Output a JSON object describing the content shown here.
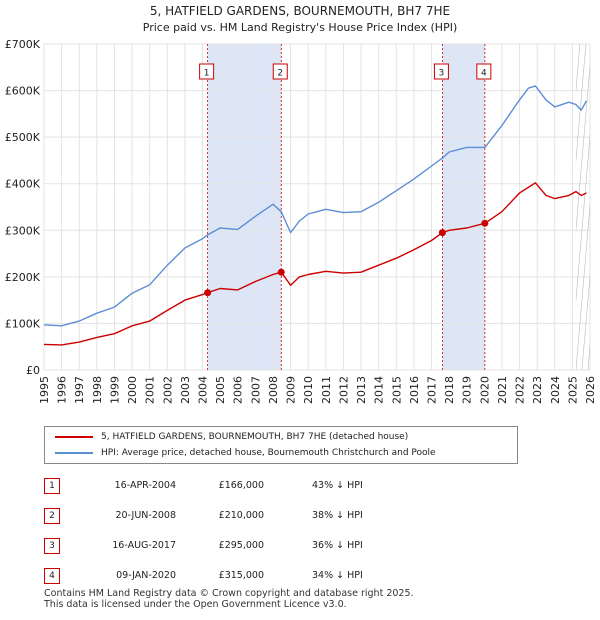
{
  "chart_data": {
    "type": "line",
    "title": "5, HATFIELD GARDENS, BOURNEMOUTH, BH7 7HE",
    "subtitle": "Price paid vs. HM Land Registry's House Price Index (HPI)",
    "xlim": [
      1995,
      2026
    ],
    "ylim": [
      0,
      700000
    ],
    "x_ticks": [
      "1995",
      "1996",
      "1997",
      "1998",
      "1999",
      "2000",
      "2001",
      "2002",
      "2003",
      "2004",
      "2005",
      "2006",
      "2007",
      "2008",
      "2009",
      "2010",
      "2011",
      "2012",
      "2013",
      "2014",
      "2015",
      "2016",
      "2017",
      "2018",
      "2019",
      "2020",
      "2021",
      "2022",
      "2023",
      "2024",
      "2025",
      "2026"
    ],
    "y_ticks": [
      {
        "value": 0,
        "label": "£0"
      },
      {
        "value": 100000,
        "label": "£100K"
      },
      {
        "value": 200000,
        "label": "£200K"
      },
      {
        "value": 300000,
        "label": "£300K"
      },
      {
        "value": 400000,
        "label": "£400K"
      },
      {
        "value": 500000,
        "label": "£500K"
      },
      {
        "value": 600000,
        "label": "£600K"
      },
      {
        "value": 700000,
        "label": "£700K"
      }
    ],
    "grid": true,
    "shaded_periods": [
      [
        2004.29,
        2008.47
      ],
      [
        2017.62,
        2020.03
      ]
    ],
    "hatched_from": 2025.2,
    "series": [
      {
        "name": "5, HATFIELD GARDENS, BOURNEMOUTH, BH7 7HE (detached house)",
        "color": "#cc0000",
        "points": [
          [
            1995,
            55000
          ],
          [
            1996,
            54000
          ],
          [
            1997,
            60000
          ],
          [
            1998,
            70000
          ],
          [
            1999,
            78000
          ],
          [
            2000,
            95000
          ],
          [
            2001,
            105000
          ],
          [
            2002,
            128000
          ],
          [
            2003,
            150000
          ],
          [
            2004,
            162000
          ],
          [
            2004.29,
            166000
          ],
          [
            2005,
            175000
          ],
          [
            2006,
            172000
          ],
          [
            2007,
            190000
          ],
          [
            2008,
            205000
          ],
          [
            2008.47,
            210000
          ],
          [
            2009,
            182000
          ],
          [
            2009.5,
            200000
          ],
          [
            2010,
            205000
          ],
          [
            2011,
            212000
          ],
          [
            2012,
            208000
          ],
          [
            2013,
            210000
          ],
          [
            2014,
            225000
          ],
          [
            2015,
            240000
          ],
          [
            2016,
            258000
          ],
          [
            2017,
            278000
          ],
          [
            2017.62,
            295000
          ],
          [
            2018,
            300000
          ],
          [
            2019,
            305000
          ],
          [
            2020.03,
            315000
          ],
          [
            2021,
            340000
          ],
          [
            2022,
            380000
          ],
          [
            2022.9,
            402000
          ],
          [
            2023.5,
            375000
          ],
          [
            2024,
            368000
          ],
          [
            2024.8,
            375000
          ],
          [
            2025.2,
            383000
          ],
          [
            2025.5,
            375000
          ],
          [
            2025.8,
            380000
          ]
        ]
      },
      {
        "name": "HPI: Average price, detached house, Bournemouth Christchurch and Poole",
        "color": "#5b8fd4",
        "points": [
          [
            1995,
            97000
          ],
          [
            1996,
            95000
          ],
          [
            1997,
            105000
          ],
          [
            1998,
            122000
          ],
          [
            1999,
            135000
          ],
          [
            2000,
            165000
          ],
          [
            2001,
            183000
          ],
          [
            2002,
            225000
          ],
          [
            2003,
            262000
          ],
          [
            2004,
            282000
          ],
          [
            2004.29,
            290000
          ],
          [
            2005,
            305000
          ],
          [
            2006,
            302000
          ],
          [
            2007,
            330000
          ],
          [
            2008,
            356000
          ],
          [
            2008.47,
            340000
          ],
          [
            2009,
            295000
          ],
          [
            2009.5,
            320000
          ],
          [
            2010,
            335000
          ],
          [
            2011,
            345000
          ],
          [
            2012,
            338000
          ],
          [
            2013,
            340000
          ],
          [
            2014,
            360000
          ],
          [
            2015,
            385000
          ],
          [
            2016,
            410000
          ],
          [
            2017,
            438000
          ],
          [
            2017.62,
            455000
          ],
          [
            2018,
            468000
          ],
          [
            2019,
            478000
          ],
          [
            2020.03,
            478000
          ],
          [
            2021,
            525000
          ],
          [
            2022,
            580000
          ],
          [
            2022.5,
            605000
          ],
          [
            2022.9,
            610000
          ],
          [
            2023.5,
            580000
          ],
          [
            2024,
            565000
          ],
          [
            2024.8,
            575000
          ],
          [
            2025.2,
            570000
          ],
          [
            2025.5,
            558000
          ],
          [
            2025.8,
            578000
          ]
        ]
      }
    ],
    "sales": [
      {
        "num": "1",
        "date": "16-APR-2004",
        "x": 2004.29,
        "price": 166000,
        "price_label": "£166,000",
        "delta": "43% ↓ HPI"
      },
      {
        "num": "2",
        "date": "20-JUN-2008",
        "x": 2008.47,
        "price": 210000,
        "price_label": "£210,000",
        "delta": "38% ↓ HPI"
      },
      {
        "num": "3",
        "date": "16-AUG-2017",
        "x": 2017.62,
        "price": 295000,
        "price_label": "£295,000",
        "delta": "36% ↓ HPI"
      },
      {
        "num": "4",
        "date": "09-JAN-2020",
        "x": 2020.03,
        "price": 315000,
        "price_label": "£315,000",
        "delta": "34% ↓ HPI"
      }
    ],
    "marker_color": "#cc0000",
    "shade_color": "#dde6f7"
  },
  "legend": {
    "property_label": "5, HATFIELD GARDENS, BOURNEMOUTH, BH7 7HE (detached house)",
    "hpi_label": "HPI: Average price, detached house, Bournemouth Christchurch and Poole"
  },
  "footer": {
    "line1": "Contains HM Land Registry data © Crown copyright and database right 2025.",
    "line2": "This data is licensed under the Open Government Licence v3.0."
  }
}
